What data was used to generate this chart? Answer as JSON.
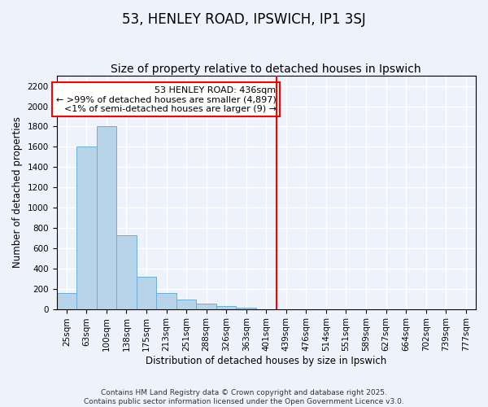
{
  "title": "53, HENLEY ROAD, IPSWICH, IP1 3SJ",
  "subtitle": "Size of property relative to detached houses in Ipswich",
  "xlabel": "Distribution of detached houses by size in Ipswich",
  "ylabel": "Number of detached properties",
  "bin_labels": [
    "25sqm",
    "63sqm",
    "100sqm",
    "138sqm",
    "175sqm",
    "213sqm",
    "251sqm",
    "288sqm",
    "326sqm",
    "363sqm",
    "401sqm",
    "439sqm",
    "476sqm",
    "514sqm",
    "551sqm",
    "589sqm",
    "627sqm",
    "664sqm",
    "702sqm",
    "739sqm",
    "777sqm"
  ],
  "bar_heights": [
    160,
    1600,
    1800,
    730,
    320,
    160,
    90,
    50,
    25,
    10,
    0,
    0,
    0,
    0,
    0,
    0,
    0,
    0,
    0,
    0,
    0
  ],
  "bar_color": "#b8d4e8",
  "bar_edge_color": "#6aaed6",
  "vline_x_index": 10.5,
  "vline_color": "red",
  "annotation_title": "53 HENLEY ROAD: 436sqm",
  "annotation_line1": "← >99% of detached houses are smaller (4,897)",
  "annotation_line2": "<1% of semi-detached houses are larger (9) →",
  "ylim": [
    0,
    2300
  ],
  "yticks": [
    0,
    200,
    400,
    600,
    800,
    1000,
    1200,
    1400,
    1600,
    1800,
    2000,
    2200
  ],
  "footnote1": "Contains HM Land Registry data © Crown copyright and database right 2025.",
  "footnote2": "Contains public sector information licensed under the Open Government Licence v3.0.",
  "background_color": "#eef2fb",
  "grid_color": "#ffffff",
  "title_fontsize": 12,
  "subtitle_fontsize": 10,
  "axis_label_fontsize": 8.5,
  "tick_fontsize": 7.5,
  "annotation_fontsize": 8,
  "footnote_fontsize": 6.5
}
